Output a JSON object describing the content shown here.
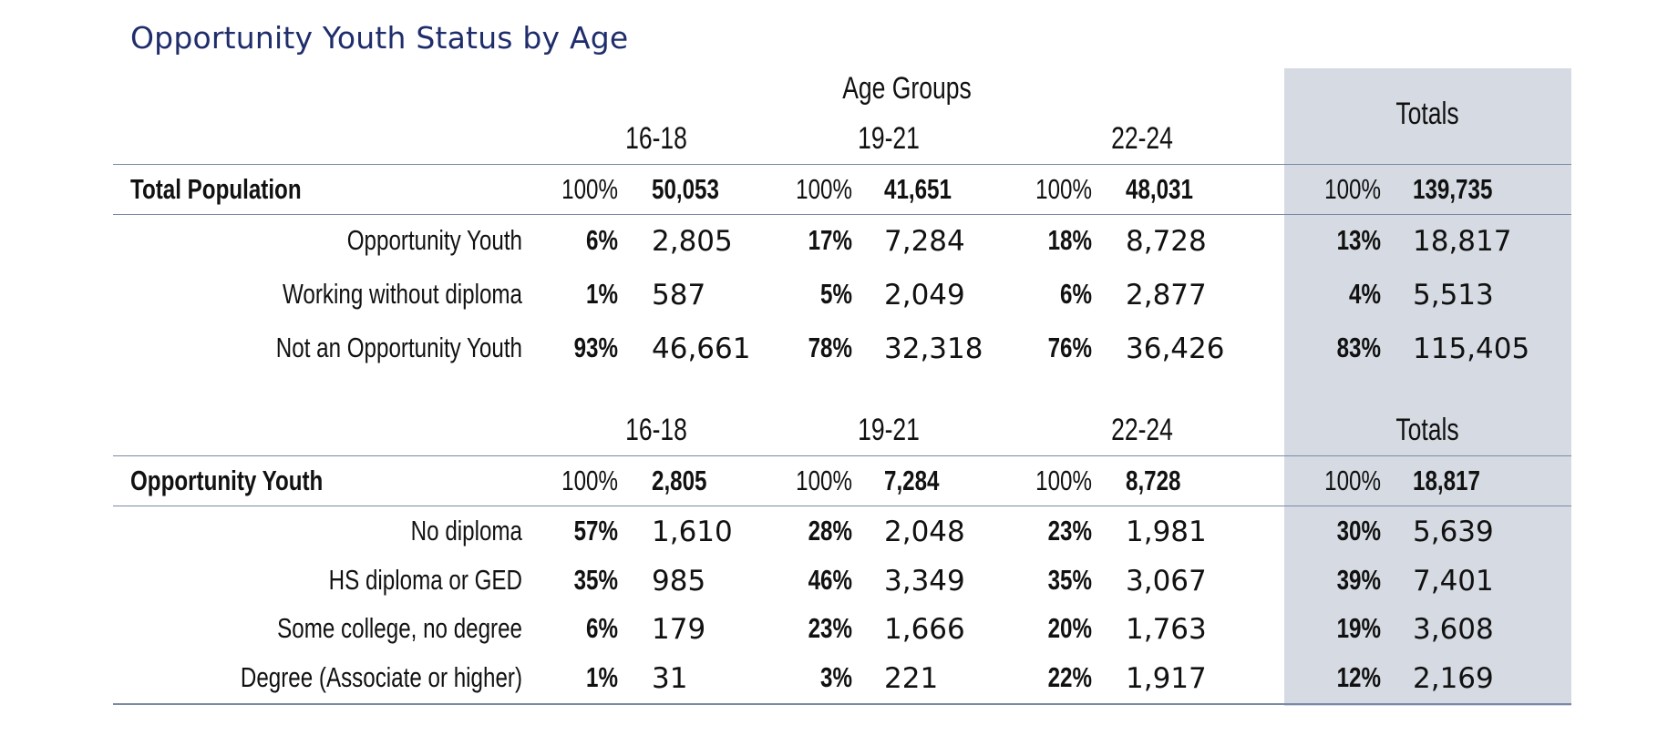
{
  "title": "Opportunity Youth Status by Age",
  "colors": {
    "title": "#1f2d6b",
    "totals_band": "#d6dbe3",
    "rule": "#7a8aa6"
  },
  "section1": {
    "super_header": "Age Groups",
    "groups": [
      "16-18",
      "19-21",
      "22-24"
    ],
    "totals_header": "Totals",
    "total_row": {
      "label": "Total Population",
      "cells": [
        {
          "pct": "100%",
          "num": "50,053"
        },
        {
          "pct": "100%",
          "num": "41,651"
        },
        {
          "pct": "100%",
          "num": "48,031"
        },
        {
          "pct": "100%",
          "num": "139,735"
        }
      ]
    },
    "rows": [
      {
        "label": "Opportunity Youth",
        "cells": [
          {
            "pct": "6%",
            "num": "2,805"
          },
          {
            "pct": "17%",
            "num": "7,284"
          },
          {
            "pct": "18%",
            "num": "8,728"
          },
          {
            "pct": "13%",
            "num": "18,817"
          }
        ]
      },
      {
        "label": "Working without diploma",
        "cells": [
          {
            "pct": "1%",
            "num": "587"
          },
          {
            "pct": "5%",
            "num": "2,049"
          },
          {
            "pct": "6%",
            "num": "2,877"
          },
          {
            "pct": "4%",
            "num": "5,513"
          }
        ]
      },
      {
        "label": "Not an Opportunity Youth",
        "cells": [
          {
            "pct": "93%",
            "num": "46,661"
          },
          {
            "pct": "78%",
            "num": "32,318"
          },
          {
            "pct": "76%",
            "num": "36,426"
          },
          {
            "pct": "83%",
            "num": "115,405"
          }
        ]
      }
    ]
  },
  "section2": {
    "groups": [
      "16-18",
      "19-21",
      "22-24"
    ],
    "totals_header": "Totals",
    "total_row": {
      "label": "Opportunity Youth",
      "cells": [
        {
          "pct": "100%",
          "num": "2,805"
        },
        {
          "pct": "100%",
          "num": "7,284"
        },
        {
          "pct": "100%",
          "num": "8,728"
        },
        {
          "pct": "100%",
          "num": "18,817"
        }
      ]
    },
    "rows": [
      {
        "label": "No diploma",
        "cells": [
          {
            "pct": "57%",
            "num": "1,610"
          },
          {
            "pct": "28%",
            "num": "2,048"
          },
          {
            "pct": "23%",
            "num": "1,981"
          },
          {
            "pct": "30%",
            "num": "5,639"
          }
        ]
      },
      {
        "label": "HS diploma or GED",
        "cells": [
          {
            "pct": "35%",
            "num": "985"
          },
          {
            "pct": "46%",
            "num": "3,349"
          },
          {
            "pct": "35%",
            "num": "3,067"
          },
          {
            "pct": "39%",
            "num": "7,401"
          }
        ]
      },
      {
        "label": "Some college, no degree",
        "cells": [
          {
            "pct": "6%",
            "num": "179"
          },
          {
            "pct": "23%",
            "num": "1,666"
          },
          {
            "pct": "20%",
            "num": "1,763"
          },
          {
            "pct": "19%",
            "num": "3,608"
          }
        ]
      },
      {
        "label": "Degree (Associate or higher)",
        "cells": [
          {
            "pct": "1%",
            "num": "31"
          },
          {
            "pct": "3%",
            "num": "221"
          },
          {
            "pct": "22%",
            "num": "1,917"
          },
          {
            "pct": "12%",
            "num": "2,169"
          }
        ]
      }
    ]
  }
}
